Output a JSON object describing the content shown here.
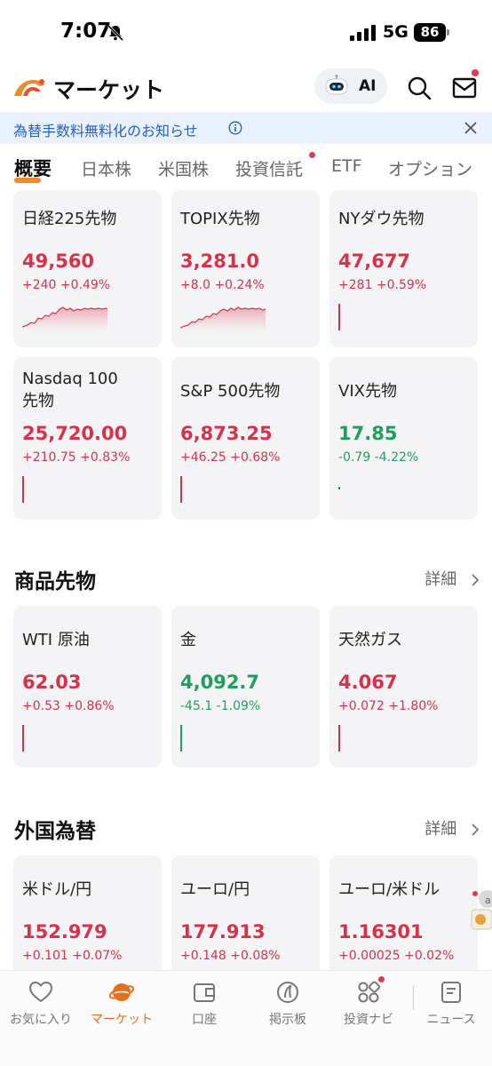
{
  "status_bar": {
    "time": "7:07",
    "network": "5G",
    "battery": "86"
  },
  "header": {
    "title": "マーケット",
    "ai_label": "AI"
  },
  "notice": {
    "text": "為替手数料無料化のお知らせ"
  },
  "tabs": [
    {
      "label": "概要",
      "active": true
    },
    {
      "label": "日本株"
    },
    {
      "label": "米国株"
    },
    {
      "label": "投資信託",
      "badge": true
    },
    {
      "label": "ETF"
    },
    {
      "label": "オプション"
    }
  ],
  "futures": [
    {
      "name": "日経225先物",
      "price": "49,560",
      "change": "+240 +0.49%",
      "direction": "up",
      "chart": "sparkline"
    },
    {
      "name": "TOPIX先物",
      "price": "3,281.0",
      "change": "+8.0 +0.24%",
      "direction": "up",
      "chart": "sparkline"
    },
    {
      "name": "NYダウ先物",
      "price": "47,677",
      "change": "+281 +0.59%",
      "direction": "up",
      "chart": "tick"
    },
    {
      "name": "Nasdaq 100先物",
      "price": "25,720.00",
      "change": "+210.75 +0.83%",
      "direction": "up",
      "chart": "tick"
    },
    {
      "name": "S&P 500先物",
      "price": "6,873.25",
      "change": "+46.25 +0.68%",
      "direction": "up",
      "chart": "tick"
    },
    {
      "name": "VIX先物",
      "price": "17.85",
      "change": "-0.79 -4.22%",
      "direction": "down",
      "chart": "dot"
    }
  ],
  "commodities": {
    "title": "商品先物",
    "detail_label": "詳細",
    "items": [
      {
        "name": "WTI 原油",
        "price": "62.03",
        "change": "+0.53 +0.86%",
        "direction": "up"
      },
      {
        "name": "金",
        "price": "4,092.7",
        "change": "-45.1 -1.09%",
        "direction": "down"
      },
      {
        "name": "天然ガス",
        "price": "4.067",
        "change": "+0.072 +1.80%",
        "direction": "up"
      }
    ]
  },
  "forex": {
    "title": "外国為替",
    "detail_label": "詳細",
    "items": [
      {
        "name": "米ドル/円",
        "price": "152.979",
        "change": "+0.101 +0.07%",
        "direction": "up"
      },
      {
        "name": "ユーロ/円",
        "price": "177.913",
        "change": "+0.148 +0.08%",
        "direction": "up"
      },
      {
        "name": "ユーロ/米ドル",
        "price": "1.16301",
        "change": "+0.00025 +0.02%",
        "direction": "up"
      }
    ]
  },
  "bottom_nav": [
    {
      "label": "お気に入り",
      "icon": "heart-icon"
    },
    {
      "label": "マーケット",
      "icon": "planet-icon",
      "active": true
    },
    {
      "label": "口座",
      "icon": "wallet-icon"
    },
    {
      "label": "掲示板",
      "icon": "board-icon"
    },
    {
      "label": "投資ナビ",
      "icon": "grid-icon",
      "badge": true
    },
    {
      "label": "ニュース",
      "icon": "news-icon"
    }
  ],
  "colors": {
    "up": "#d8314a",
    "down": "#1f9e5e",
    "accent": "#f08a2a",
    "notice_text": "#2460c8"
  }
}
